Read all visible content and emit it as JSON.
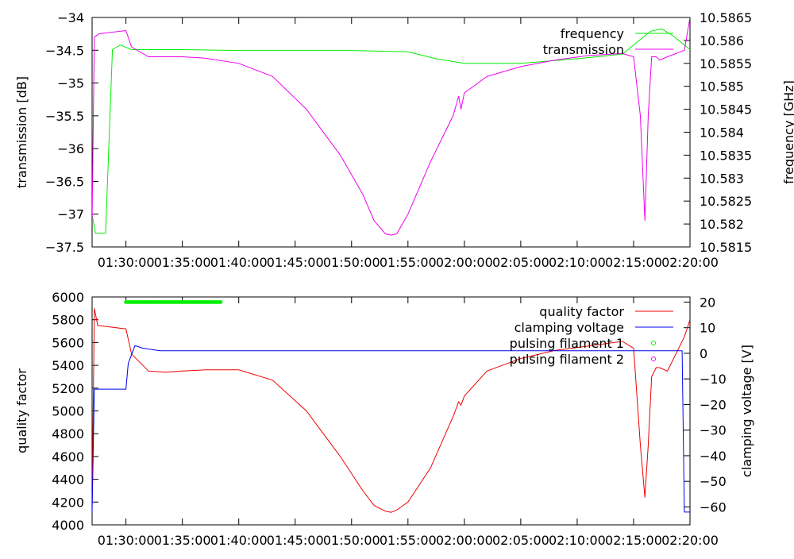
{
  "chart_data": [
    {
      "type": "line",
      "ylabel": "transmission [dB]",
      "y2label": "frequency [GHz]",
      "x_ticks": [
        "01:30:00",
        "01:35:00",
        "01:40:00",
        "01:45:00",
        "01:50:00",
        "01:55:00",
        "02:00:00",
        "02:05:00",
        "02:10:00",
        "02:15:00",
        "02:20:00"
      ],
      "xlim_minutes": [
        87,
        140
      ],
      "ylim": [
        -37.5,
        -34
      ],
      "y_ticks": [
        "-34",
        "-34.5",
        "-35",
        "-35.5",
        "-36",
        "-36.5",
        "-37",
        "-37.5"
      ],
      "y2lim": [
        10.5815,
        10.5865
      ],
      "y2_ticks": [
        "10.5865",
        "10.586",
        "10.5855",
        "10.585",
        "10.5845",
        "10.584",
        "10.5835",
        "10.583",
        "10.5825",
        "10.582",
        "10.5815"
      ],
      "legend": "top-right",
      "series": [
        {
          "name": "frequency",
          "axis": "y2",
          "color": "#00ee00",
          "x": [
            87.0,
            87.3,
            88.2,
            88.8,
            89.5,
            90.5,
            95,
            100,
            105,
            110,
            115,
            117.5,
            120,
            125,
            130,
            134,
            136,
            136.5,
            137.5,
            138.5,
            139.5,
            140
          ],
          "y": [
            10.5822,
            10.5818,
            10.5818,
            10.5858,
            10.5859,
            10.5858,
            10.5858,
            10.58578,
            10.58578,
            10.58578,
            10.58575,
            10.5856,
            10.5855,
            10.5855,
            10.5856,
            10.5857,
            10.5861,
            10.5862,
            10.58625,
            10.5861,
            10.5859,
            10.5858
          ]
        },
        {
          "name": "transmission",
          "axis": "y",
          "color": "#ee00ee",
          "x": [
            87.0,
            87.2,
            87.6,
            90,
            90.5,
            92,
            93.5,
            95,
            97,
            100,
            103,
            106,
            109,
            111,
            112,
            113,
            113.5,
            114,
            115,
            117,
            119,
            119.5,
            119.7,
            120,
            122,
            125,
            128,
            131,
            134,
            135,
            135.6,
            136,
            136.3,
            136.6,
            137,
            137.3,
            138,
            139.5,
            140
          ],
          "y": [
            -37.1,
            -34.3,
            -34.25,
            -34.2,
            -34.45,
            -34.6,
            -34.6,
            -34.6,
            -34.62,
            -34.7,
            -34.9,
            -35.4,
            -36.1,
            -36.7,
            -37.1,
            -37.3,
            -37.32,
            -37.3,
            -37.0,
            -36.2,
            -35.5,
            -35.2,
            -35.4,
            -35.15,
            -34.9,
            -34.75,
            -34.65,
            -34.58,
            -34.55,
            -34.6,
            -35.5,
            -37.1,
            -35.5,
            -34.6,
            -34.6,
            -34.65,
            -34.6,
            -34.5,
            -34.0
          ]
        }
      ]
    },
    {
      "type": "line",
      "ylabel": "quality factor",
      "y2label": "clamping voltage [V]",
      "x_ticks": [
        "01:30:00",
        "01:35:00",
        "01:40:00",
        "01:45:00",
        "01:50:00",
        "01:55:00",
        "02:00:00",
        "02:05:00",
        "02:10:00",
        "02:15:00",
        "02:20:00"
      ],
      "xlim_minutes": [
        87,
        140
      ],
      "ylim": [
        4000,
        6000
      ],
      "y_ticks": [
        "6000",
        "5800",
        "5600",
        "5400",
        "5200",
        "5000",
        "4800",
        "4600",
        "4400",
        "4200",
        "4000"
      ],
      "y2lim": [
        -67,
        22
      ],
      "y2_ticks": [
        "20",
        "10",
        "0",
        "-10",
        "-20",
        "-30",
        "-40",
        "-50",
        "-60"
      ],
      "legend": "top-right",
      "series": [
        {
          "name": "quality factor",
          "axis": "y",
          "color": "#ee0000",
          "x": [
            87.0,
            87.2,
            87.5,
            90,
            90.5,
            92,
            93.5,
            95,
            97,
            100,
            103,
            106,
            109,
            111,
            112,
            113,
            113.5,
            114,
            115,
            117,
            119,
            119.5,
            119.7,
            120,
            122,
            125,
            128,
            131,
            134,
            135,
            135.6,
            136,
            136.3,
            136.6,
            137,
            137.3,
            138,
            139.5,
            140
          ],
          "y": [
            4150,
            5900,
            5750,
            5720,
            5500,
            5350,
            5340,
            5350,
            5360,
            5360,
            5270,
            5000,
            4600,
            4300,
            4170,
            4120,
            4110,
            4130,
            4200,
            4500,
            4950,
            5080,
            5050,
            5130,
            5350,
            5460,
            5530,
            5570,
            5610,
            5550,
            4700,
            4240,
            4700,
            5300,
            5380,
            5380,
            5350,
            5650,
            5800
          ]
        },
        {
          "name": "clamping voltage",
          "axis": "y2",
          "color": "#0000ee",
          "x": [
            87.0,
            87.2,
            90,
            90.2,
            90.8,
            91.5,
            93,
            95,
            100,
            110,
            120,
            130,
            139.3,
            139.5,
            140
          ],
          "y": [
            -62,
            -14,
            -14,
            -4,
            3,
            2,
            1,
            1,
            1,
            1,
            1,
            1,
            1,
            -62,
            -62
          ]
        }
      ],
      "point_series": [
        {
          "name": "pulsing filament 1",
          "color": "#00ee00",
          "x_start": 90.0,
          "x_end": 98.5,
          "y_value": 5955
        },
        {
          "name": "pulsing filament 2",
          "color": "#ee00ee",
          "points": []
        }
      ]
    }
  ]
}
